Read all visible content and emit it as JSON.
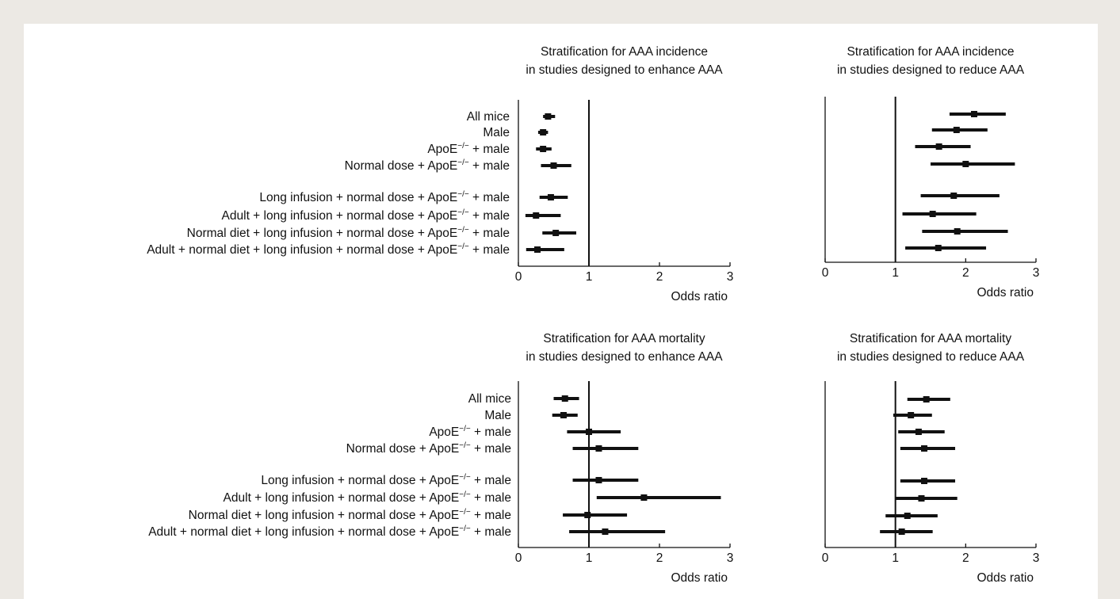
{
  "chart_data": [
    {
      "type": "forest",
      "title": [
        "Stratification for AAA incidence",
        "in studies designed to enhance AAA"
      ],
      "xlabel": "Odds ratio",
      "xlim": [
        0,
        3
      ],
      "xticks": [
        "0",
        "1",
        "2",
        "3"
      ],
      "reference_line": 1,
      "categories": [
        {
          "text": "All mice"
        },
        {
          "text": "Male"
        },
        {
          "text": "ApoE",
          "sup": "−/−",
          "suffix": " + male"
        },
        {
          "text": "Normal dose + ApoE",
          "sup": "−/−",
          "suffix": " + male"
        },
        {
          "text": "Long infusion + normal dose + ApoE",
          "sup": "−/−",
          "suffix": " + male"
        },
        {
          "text": "Adult + long infusion + normal dose + ApoE",
          "sup": "−/−",
          "suffix": " + male"
        },
        {
          "text": "Normal diet + long infusion + normal dose + ApoE",
          "sup": "−/−",
          "suffix": " + male"
        },
        {
          "text": "Adult + normal diet + long infusion + normal dose + ApoE",
          "sup": "−/−",
          "suffix": " + male"
        }
      ],
      "estimates": [
        {
          "or": 0.42,
          "lo": 0.35,
          "hi": 0.52
        },
        {
          "or": 0.35,
          "lo": 0.28,
          "hi": 0.42
        },
        {
          "or": 0.35,
          "lo": 0.25,
          "hi": 0.47
        },
        {
          "or": 0.5,
          "lo": 0.32,
          "hi": 0.75
        },
        {
          "or": 0.46,
          "lo": 0.3,
          "hi": 0.7
        },
        {
          "or": 0.25,
          "lo": 0.1,
          "hi": 0.6
        },
        {
          "or": 0.53,
          "lo": 0.34,
          "hi": 0.82
        },
        {
          "or": 0.27,
          "lo": 0.11,
          "hi": 0.65
        }
      ]
    },
    {
      "type": "forest",
      "title": [
        "Stratification for AAA incidence",
        "in studies designed to reduce AAA"
      ],
      "xlabel": "Odds ratio",
      "xlim": [
        0,
        3
      ],
      "xticks": [
        "0",
        "1",
        "2",
        "3"
      ],
      "reference_line": 1,
      "estimates": [
        {
          "or": 2.12,
          "lo": 1.77,
          "hi": 2.57
        },
        {
          "or": 1.87,
          "lo": 1.52,
          "hi": 2.31
        },
        {
          "or": 1.62,
          "lo": 1.28,
          "hi": 2.07
        },
        {
          "or": 2.0,
          "lo": 1.5,
          "hi": 2.7
        },
        {
          "or": 1.83,
          "lo": 1.36,
          "hi": 2.48
        },
        {
          "or": 1.53,
          "lo": 1.1,
          "hi": 2.15
        },
        {
          "or": 1.88,
          "lo": 1.38,
          "hi": 2.6
        },
        {
          "or": 1.61,
          "lo": 1.14,
          "hi": 2.29
        }
      ]
    },
    {
      "type": "forest",
      "title": [
        "Stratification for AAA mortality",
        "in studies designed to enhance AAA"
      ],
      "xlabel": "Odds ratio",
      "xlim": [
        0,
        3
      ],
      "xticks": [
        "0",
        "1",
        "2",
        "3"
      ],
      "reference_line": 1,
      "estimates": [
        {
          "or": 0.66,
          "lo": 0.5,
          "hi": 0.86
        },
        {
          "or": 0.64,
          "lo": 0.48,
          "hi": 0.84
        },
        {
          "or": 1.0,
          "lo": 0.69,
          "hi": 1.45
        },
        {
          "or": 1.14,
          "lo": 0.77,
          "hi": 1.7
        },
        {
          "or": 1.14,
          "lo": 0.77,
          "hi": 1.7
        },
        {
          "or": 1.78,
          "lo": 1.11,
          "hi": 2.87
        },
        {
          "or": 0.98,
          "lo": 0.63,
          "hi": 1.54
        },
        {
          "or": 1.23,
          "lo": 0.72,
          "hi": 2.08
        }
      ]
    },
    {
      "type": "forest",
      "title": [
        "Stratification for AAA mortality",
        "in studies designed to reduce AAA"
      ],
      "xlabel": "Odds ratio",
      "xlim": [
        0,
        3
      ],
      "xticks": [
        "0",
        "1",
        "2",
        "3"
      ],
      "reference_line": 1,
      "estimates": [
        {
          "or": 1.44,
          "lo": 1.17,
          "hi": 1.78
        },
        {
          "or": 1.22,
          "lo": 0.97,
          "hi": 1.52
        },
        {
          "or": 1.33,
          "lo": 1.04,
          "hi": 1.7
        },
        {
          "or": 1.41,
          "lo": 1.07,
          "hi": 1.85
        },
        {
          "or": 1.41,
          "lo": 1.07,
          "hi": 1.85
        },
        {
          "or": 1.37,
          "lo": 1.0,
          "hi": 1.88
        },
        {
          "or": 1.17,
          "lo": 0.86,
          "hi": 1.6
        },
        {
          "or": 1.09,
          "lo": 0.78,
          "hi": 1.53
        }
      ]
    }
  ]
}
